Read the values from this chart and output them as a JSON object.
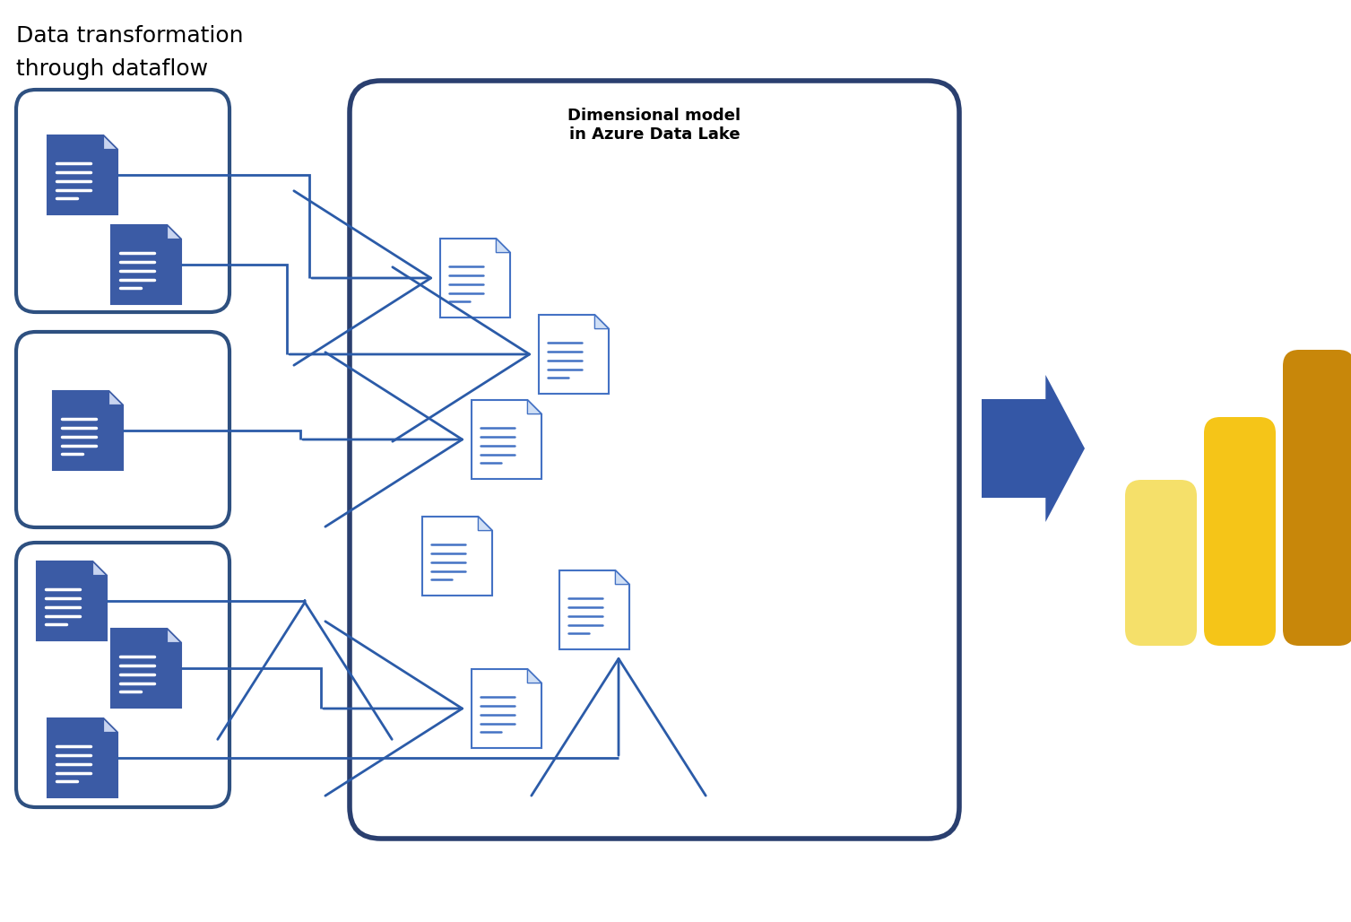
{
  "title_line1": "Data transformation",
  "title_line2": "through dataflow",
  "box2_title": "Dimensional model\nin Azure Data Lake",
  "bg_color": "#ffffff",
  "box_edge_color": "#2E5080",
  "box_fill_color": "#ffffff",
  "arrow_color": "#2B5BA8",
  "big_arrow_color": "#3457A6",
  "doc_fill_dark": "#3B5BA5",
  "doc_fill_light": "#ffffff",
  "doc_border_color": "#4472C4",
  "doc_line_color_dark": "#ffffff",
  "doc_line_color_light": "#4472C4",
  "title_fontsize": 18,
  "label_fontsize": 13,
  "bar_colors_left": [
    "#F5E06A",
    "#F5C518",
    "#D4920A"
  ],
  "bar_colors_right": [
    "#D4920A",
    "#F5C518",
    "#F5E06A"
  ],
  "power_bi_bar1_color": "#F5E06A",
  "power_bi_bar2_color": "#F5C518",
  "power_bi_bar3_color": "#C8870A"
}
